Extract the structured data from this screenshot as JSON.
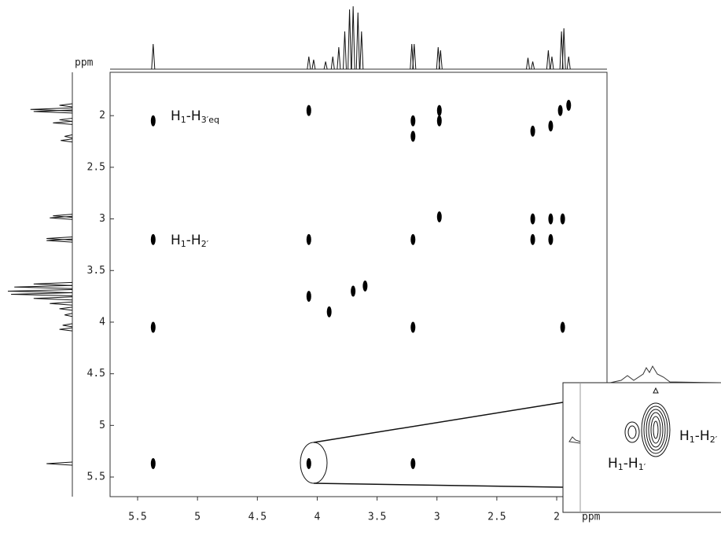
{
  "chart_data": {
    "type": "scatter",
    "x_label": "ppm",
    "y_label": "ppm",
    "xlim": [
      5.73,
      1.58
    ],
    "ylim": [
      1.58,
      5.69
    ],
    "xticks": [
      5.5,
      5.0,
      4.5,
      4.0,
      3.5,
      3.0,
      2.5,
      2.0
    ],
    "yticks": [
      2.0,
      2.5,
      3.0,
      3.5,
      4.0,
      4.5,
      5.0,
      5.5
    ],
    "color": "#000000",
    "x": [
      5.37,
      5.37,
      5.37,
      5.37,
      4.07,
      4.07,
      4.07,
      4.07,
      3.2,
      3.2,
      3.2,
      3.2,
      2.98,
      2.98,
      1.95,
      2.2,
      2.2,
      2.05,
      2.05,
      1.95,
      2.2,
      2.05,
      1.97,
      1.9,
      2.98,
      3.2,
      3.7,
      3.9,
      3.6
    ],
    "values": [
      2.05,
      3.2,
      4.05,
      5.37,
      1.95,
      3.2,
      3.75,
      5.37,
      2.05,
      2.2,
      4.05,
      5.37,
      1.95,
      2.05,
      4.05,
      3.0,
      3.2,
      3.0,
      3.2,
      3.0,
      2.15,
      2.1,
      1.95,
      1.9,
      2.98,
      3.2,
      3.7,
      3.9,
      3.65
    ],
    "projection": {
      "ppm": [
        5.37,
        4.07,
        4.03,
        3.93,
        3.87,
        3.82,
        3.77,
        3.73,
        3.7,
        3.66,
        3.63,
        3.21,
        3.19,
        2.99,
        2.97,
        2.24,
        2.2,
        2.07,
        2.04,
        1.96,
        1.94,
        1.9
      ],
      "intensity": [
        0.4,
        0.2,
        0.15,
        0.12,
        0.2,
        0.35,
        0.6,
        0.95,
        1.0,
        0.9,
        0.6,
        0.4,
        0.4,
        0.35,
        0.3,
        0.18,
        0.12,
        0.3,
        0.2,
        0.6,
        0.65,
        0.2
      ]
    },
    "annotations": [
      [
        {
          "text": "H"
        },
        {
          "text": "1",
          "sub": true
        },
        {
          "text": "-H"
        },
        {
          "text": "3′eq",
          "sub": true
        }
      ],
      [
        {
          "text": "H"
        },
        {
          "text": "1",
          "sub": true
        },
        {
          "text": "-H"
        },
        {
          "text": "2′",
          "sub": true
        }
      ]
    ],
    "inset_annotations": [
      [
        {
          "text": "H"
        },
        {
          "text": "1",
          "sub": true
        },
        {
          "text": "-H"
        },
        {
          "text": "2′",
          "sub": true
        }
      ],
      [
        {
          "text": "H"
        },
        {
          "text": "1",
          "sub": true
        },
        {
          "text": "-H"
        },
        {
          "text": "1′",
          "sub": true
        }
      ]
    ]
  }
}
